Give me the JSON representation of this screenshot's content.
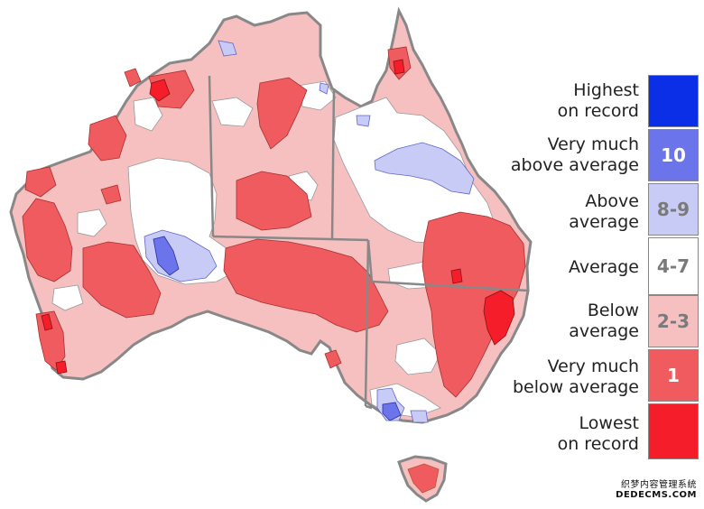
{
  "legend": [
    {
      "label": "Highest\non record",
      "decile": "",
      "color": "#0a2fe6",
      "text_color": "#ffffff"
    },
    {
      "label": "Very much\nabove average",
      "decile": "10",
      "color": "#6b74ea",
      "text_color": "#ffffff"
    },
    {
      "label": "Above\naverage",
      "decile": "8-9",
      "color": "#c8cbf5",
      "text_color": "#7a7a7a"
    },
    {
      "label": "Average",
      "decile": "4-7",
      "color": "#ffffff",
      "text_color": "#7a7a7a"
    },
    {
      "label": "Below\naverage",
      "decile": "2-3",
      "color": "#f6c0c0",
      "text_color": "#7a7a7a"
    },
    {
      "label": "Very much\nbelow average",
      "decile": "1",
      "color": "#ef5b5e",
      "text_color": "#ffffff"
    },
    {
      "label": "Lowest\non record",
      "decile": "",
      "color": "#f51d2a",
      "text_color": "#ffffff"
    }
  ],
  "watermark": {
    "line1": "织梦内容管理系统",
    "line2": "DEDECMS.COM"
  }
}
